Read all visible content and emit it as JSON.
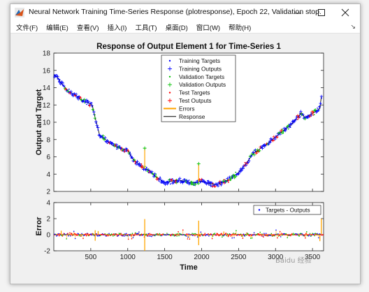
{
  "window": {
    "title": "Neural Network Training Time-Series Response (plotresponse), Epoch 22, Validation stop.",
    "minimize_icon": "minimize-icon",
    "maximize_icon": "maximize-icon",
    "close_icon": "close-icon"
  },
  "menu": [
    {
      "label": "文件(F)"
    },
    {
      "label": "编辑(E)"
    },
    {
      "label": "查看(V)"
    },
    {
      "label": "插入(I)"
    },
    {
      "label": "工具(T)"
    },
    {
      "label": "桌面(D)"
    },
    {
      "label": "窗口(W)"
    },
    {
      "label": "帮助(H)"
    }
  ],
  "watermark": "Baidu 经验",
  "chart_data": [
    {
      "type": "scatter",
      "title": "Response of Output Element 1 for Time-Series 1",
      "xlabel": "",
      "ylabel": "Output and Target",
      "xlim": [
        0,
        3650
      ],
      "ylim": [
        2,
        18
      ],
      "yticks": [
        "2",
        "4",
        "6",
        "8",
        "10",
        "12",
        "14",
        "16",
        "18"
      ],
      "grid": false,
      "legend_position": "top-center",
      "legend": [
        {
          "label": "Training Targets",
          "marker": "dot",
          "color": "#0000ff"
        },
        {
          "label": "Training Outputs",
          "marker": "plus",
          "color": "#0000ff"
        },
        {
          "label": "Validation Targets",
          "marker": "dot",
          "color": "#00c000"
        },
        {
          "label": "Validation Outputs",
          "marker": "plus",
          "color": "#00c000"
        },
        {
          "label": "Test Targets",
          "marker": "dot",
          "color": "#ff0000"
        },
        {
          "label": "Test Outputs",
          "marker": "plus",
          "color": "#ff0000"
        },
        {
          "label": "Errors",
          "marker": "line",
          "color": "#ffa500"
        },
        {
          "label": "Response",
          "marker": "line",
          "color": "#000000"
        }
      ],
      "response_curve": {
        "x": [
          0,
          50,
          100,
          200,
          300,
          380,
          450,
          520,
          560,
          620,
          700,
          800,
          900,
          1000,
          1050,
          1100,
          1200,
          1300,
          1400,
          1500,
          1600,
          1700,
          1800,
          1900,
          2000,
          2100,
          2200,
          2300,
          2400,
          2500,
          2600,
          2700,
          2800,
          2900,
          3000,
          3100,
          3200,
          3250,
          3300,
          3350,
          3400,
          3450,
          3500,
          3550,
          3600,
          3620
        ],
        "y": [
          15.5,
          15.2,
          14.5,
          13.6,
          13.1,
          12.5,
          12.3,
          12.0,
          10.5,
          8.5,
          8.0,
          7.3,
          7.0,
          6.8,
          6.0,
          5.5,
          4.8,
          4.3,
          3.6,
          3.0,
          3.2,
          3.3,
          3.1,
          3.0,
          3.2,
          2.9,
          2.8,
          3.1,
          3.5,
          4.2,
          5.2,
          6.4,
          7.0,
          7.6,
          8.3,
          9.0,
          9.6,
          10.1,
          10.6,
          11.1,
          10.5,
          10.8,
          11.0,
          11.3,
          11.6,
          13.0
        ]
      },
      "error_spikes": [
        {
          "x": 1230,
          "y": 7.0
        },
        {
          "x": 1960,
          "y": 5.2
        }
      ]
    },
    {
      "type": "scatter",
      "title": "",
      "xlabel": "Time",
      "ylabel": "Error",
      "xlim": [
        0,
        3650
      ],
      "ylim": [
        -2,
        4
      ],
      "yticks": [
        "-2",
        "0",
        "2",
        "4"
      ],
      "xticks": [
        "500",
        "1000",
        "1500",
        "2000",
        "2500",
        "3000",
        "3500"
      ],
      "legend_position": "top-right",
      "legend": [
        {
          "label": "Targets - Outputs",
          "marker": "dot",
          "color": "#0000ff"
        }
      ],
      "error_spikes": [
        {
          "x": 1230,
          "y": 1.95
        },
        {
          "x": 1230,
          "y": -2.0
        },
        {
          "x": 1960,
          "y": 1.75
        },
        {
          "x": 1960,
          "y": -1.3
        },
        {
          "x": 560,
          "y": 0.55
        },
        {
          "x": 560,
          "y": -0.75
        },
        {
          "x": 600,
          "y": 0.45
        },
        {
          "x": 3620,
          "y": 2.0
        },
        {
          "x": 3600,
          "y": -0.8
        },
        {
          "x": 100,
          "y": 0.5
        },
        {
          "x": 2300,
          "y": 0.4
        }
      ]
    }
  ]
}
